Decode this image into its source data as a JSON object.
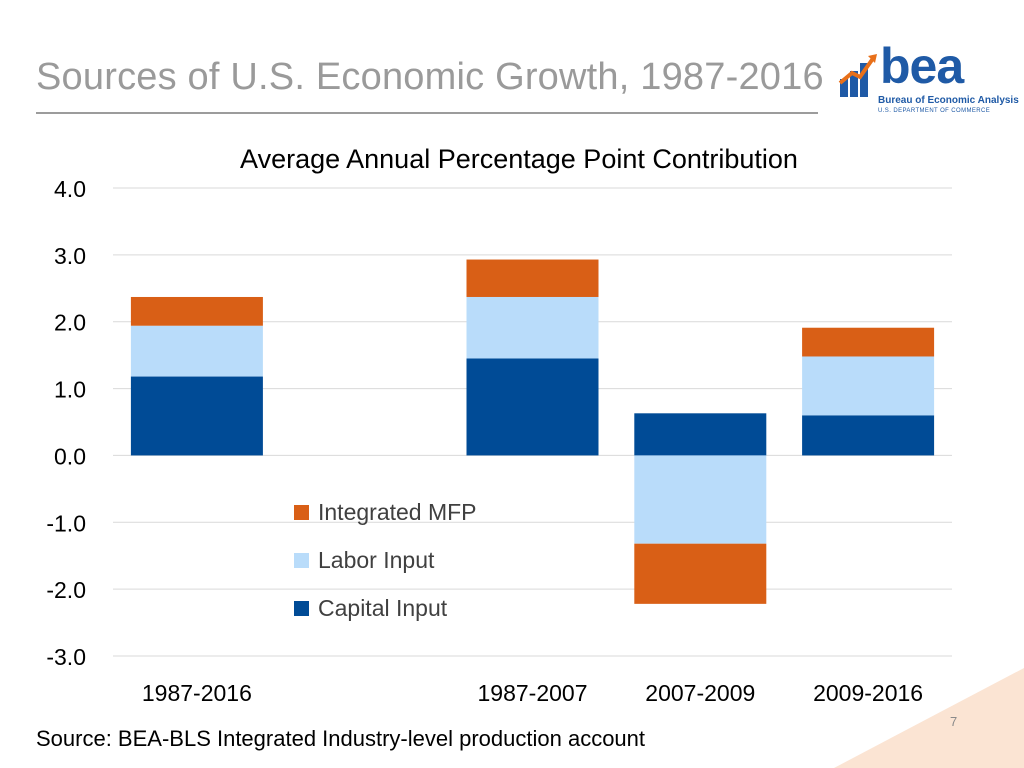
{
  "slide": {
    "title": "Sources of U.S. Economic Growth, 1987-2016",
    "source": "Source: BEA-BLS Integrated Industry-level production account",
    "page_number": "7",
    "logo": {
      "word": "bea",
      "subtitle": "Bureau of Economic Analysis",
      "department": "U.S. DEPARTMENT OF COMMERCE"
    }
  },
  "colors": {
    "mfp": "#d95f16",
    "labor": "#b9dcfa",
    "capital": "#004b96",
    "grid": "#d9d9d9"
  },
  "chart_data": {
    "type": "bar",
    "stacked": true,
    "title": "Average Annual Percentage Point Contribution",
    "categories": [
      "1987-2016",
      "",
      "1987-2007",
      "2007-2009",
      "2009-2016"
    ],
    "series": [
      {
        "name": "Capital Input",
        "color": "#004b96",
        "values": [
          1.18,
          null,
          1.45,
          0.63,
          0.6
        ]
      },
      {
        "name": "Labor Input",
        "color": "#b9dcfa",
        "values": [
          0.76,
          null,
          0.92,
          -1.32,
          0.88
        ]
      },
      {
        "name": "Integrated MFP",
        "color": "#d95f16",
        "values": [
          0.43,
          null,
          0.56,
          -0.9,
          0.43
        ]
      }
    ],
    "legend_order": [
      "Integrated MFP",
      "Labor Input",
      "Capital Input"
    ],
    "legend_position": "center",
    "yticks": [
      "4.0",
      "3.0",
      "2.0",
      "1.0",
      "0.0",
      "-1.0",
      "-2.0",
      "-3.0"
    ],
    "ylim": [
      -3,
      4
    ],
    "grid": true,
    "xlabel": "",
    "ylabel": ""
  }
}
